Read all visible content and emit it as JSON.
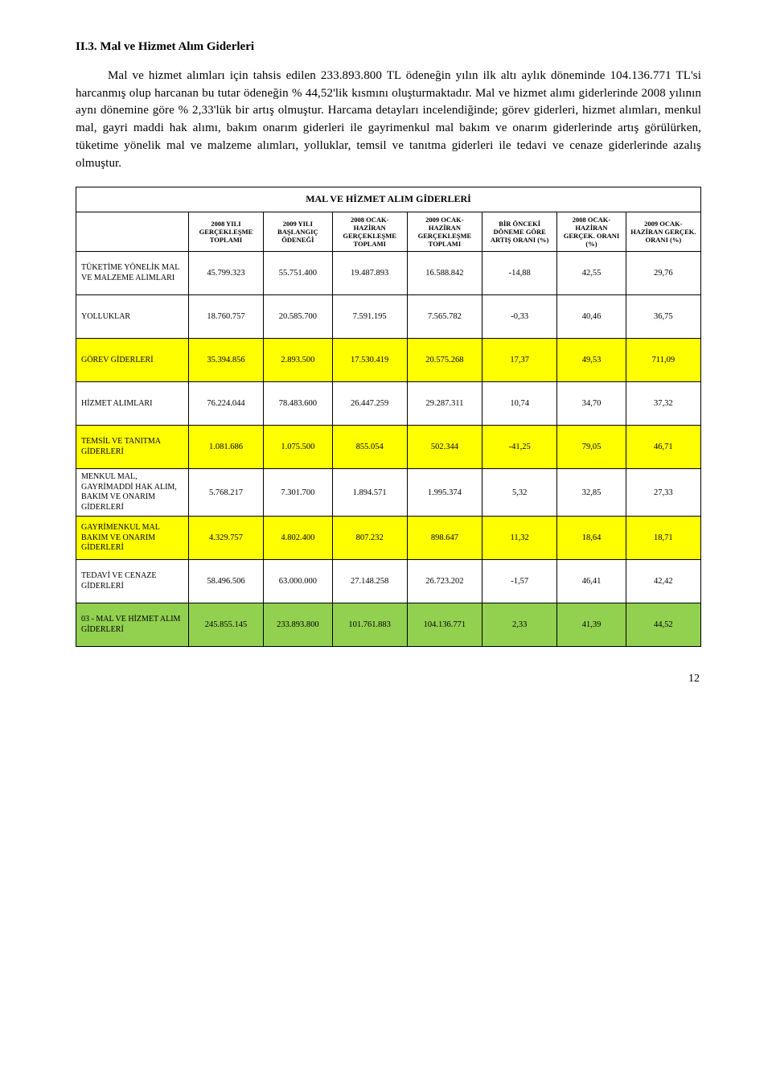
{
  "heading": "II.3. Mal ve Hizmet Alım Giderleri",
  "paragraph": "Mal ve hizmet alımları için tahsis edilen 233.893.800 TL ödeneğin yılın ilk altı aylık döneminde 104.136.771 TL'si harcanmış olup harcanan bu tutar ödeneğin % 44,52'lik kısmını oluşturmaktadır. Mal ve hizmet alımı giderlerinde 2008 yılının aynı dönemine göre % 2,33'lük bir artış olmuştur. Harcama detayları incelendiğinde; görev giderleri, hizmet alımları, menkul mal, gayri maddi hak alımı, bakım onarım giderleri ile gayrimenkul mal bakım ve onarım giderlerinde artış görülürken, tüketime yönelik mal ve malzeme alımları, yolluklar, temsil ve tanıtma giderleri ile tedavi ve cenaze giderlerinde azalış olmuştur.",
  "table_title": "MAL VE HİZMET ALIM GİDERLERİ",
  "col_headers": [
    "2008 YILI GERÇEKLEŞME TOPLAMI",
    "2009 YILI BAŞLANGIÇ ÖDENEĞİ",
    "2008 OCAK-HAZİRAN GERÇEKLEŞME TOPLAMI",
    "2009 OCAK-HAZİRAN GERÇEKLEŞME TOPLAMI",
    "BİR ÖNCEKİ DÖNEME GÖRE ARTIŞ ORANI (%)",
    "2008 OCAK-HAZİRAN GERÇEK. ORANI (%)",
    "2009 OCAK-HAZİRAN GERÇEK. ORANI (%)"
  ],
  "rows": [
    {
      "label": "TÜKETİME YÖNELİK MAL VE MALZEME ALIMLARI",
      "cells": [
        "45.799.323",
        "55.751.400",
        "19.487.893",
        "16.588.842",
        "-14,88",
        "42,55",
        "29,76"
      ],
      "bg": ""
    },
    {
      "label": "YOLLUKLAR",
      "cells": [
        "18.760.757",
        "20.585.700",
        "7.591.195",
        "7.565.782",
        "-0,33",
        "40,46",
        "36,75"
      ],
      "bg": ""
    },
    {
      "label": "GÖREV GİDERLERİ",
      "cells": [
        "35.394.856",
        "2.893.500",
        "17.530.419",
        "20.575.268",
        "17,37",
        "49,53",
        "711,09"
      ],
      "bg": "yellow"
    },
    {
      "label": "HİZMET ALIMLARI",
      "cells": [
        "76.224.044",
        "78.483.600",
        "26.447.259",
        "29.287.311",
        "10,74",
        "34,70",
        "37,32"
      ],
      "bg": ""
    },
    {
      "label": "TEMSİL VE TANITMA GİDERLERİ",
      "cells": [
        "1.081.686",
        "1.075.500",
        "855.054",
        "502.344",
        "-41,25",
        "79,05",
        "46,71"
      ],
      "bg": "yellow"
    },
    {
      "label": "MENKUL MAL, GAYRİMADDİ HAK ALIM, BAKIM VE ONARIM GİDERLERİ",
      "cells": [
        "5.768.217",
        "7.301.700",
        "1.894.571",
        "1.995.374",
        "5,32",
        "32,85",
        "27,33"
      ],
      "bg": ""
    },
    {
      "label": "GAYRİMENKUL MAL BAKIM VE ONARIM GİDERLERİ",
      "cells": [
        "4.329.757",
        "4.802.400",
        "807.232",
        "898.647",
        "11,32",
        "18,64",
        "18,71"
      ],
      "bg": "yellow"
    },
    {
      "label": "TEDAVİ VE CENAZE GİDERLERİ",
      "cells": [
        "58.496.506",
        "63.000.000",
        "27.148.258",
        "26.723.202",
        "-1,57",
        "46,41",
        "42,42"
      ],
      "bg": ""
    },
    {
      "label": "03 - MAL VE HİZMET ALIM GİDERLERİ",
      "cells": [
        "245.855.145",
        "233.893.800",
        "101.761.883",
        "104.136.771",
        "2,33",
        "41,39",
        "44,52"
      ],
      "bg": "lime"
    }
  ],
  "page_number": "12",
  "colors": {
    "yellow": "#ffff00",
    "lime": "#92d050"
  },
  "col_widths_pct": [
    18,
    12,
    11,
    12,
    12,
    12,
    11,
    12
  ]
}
